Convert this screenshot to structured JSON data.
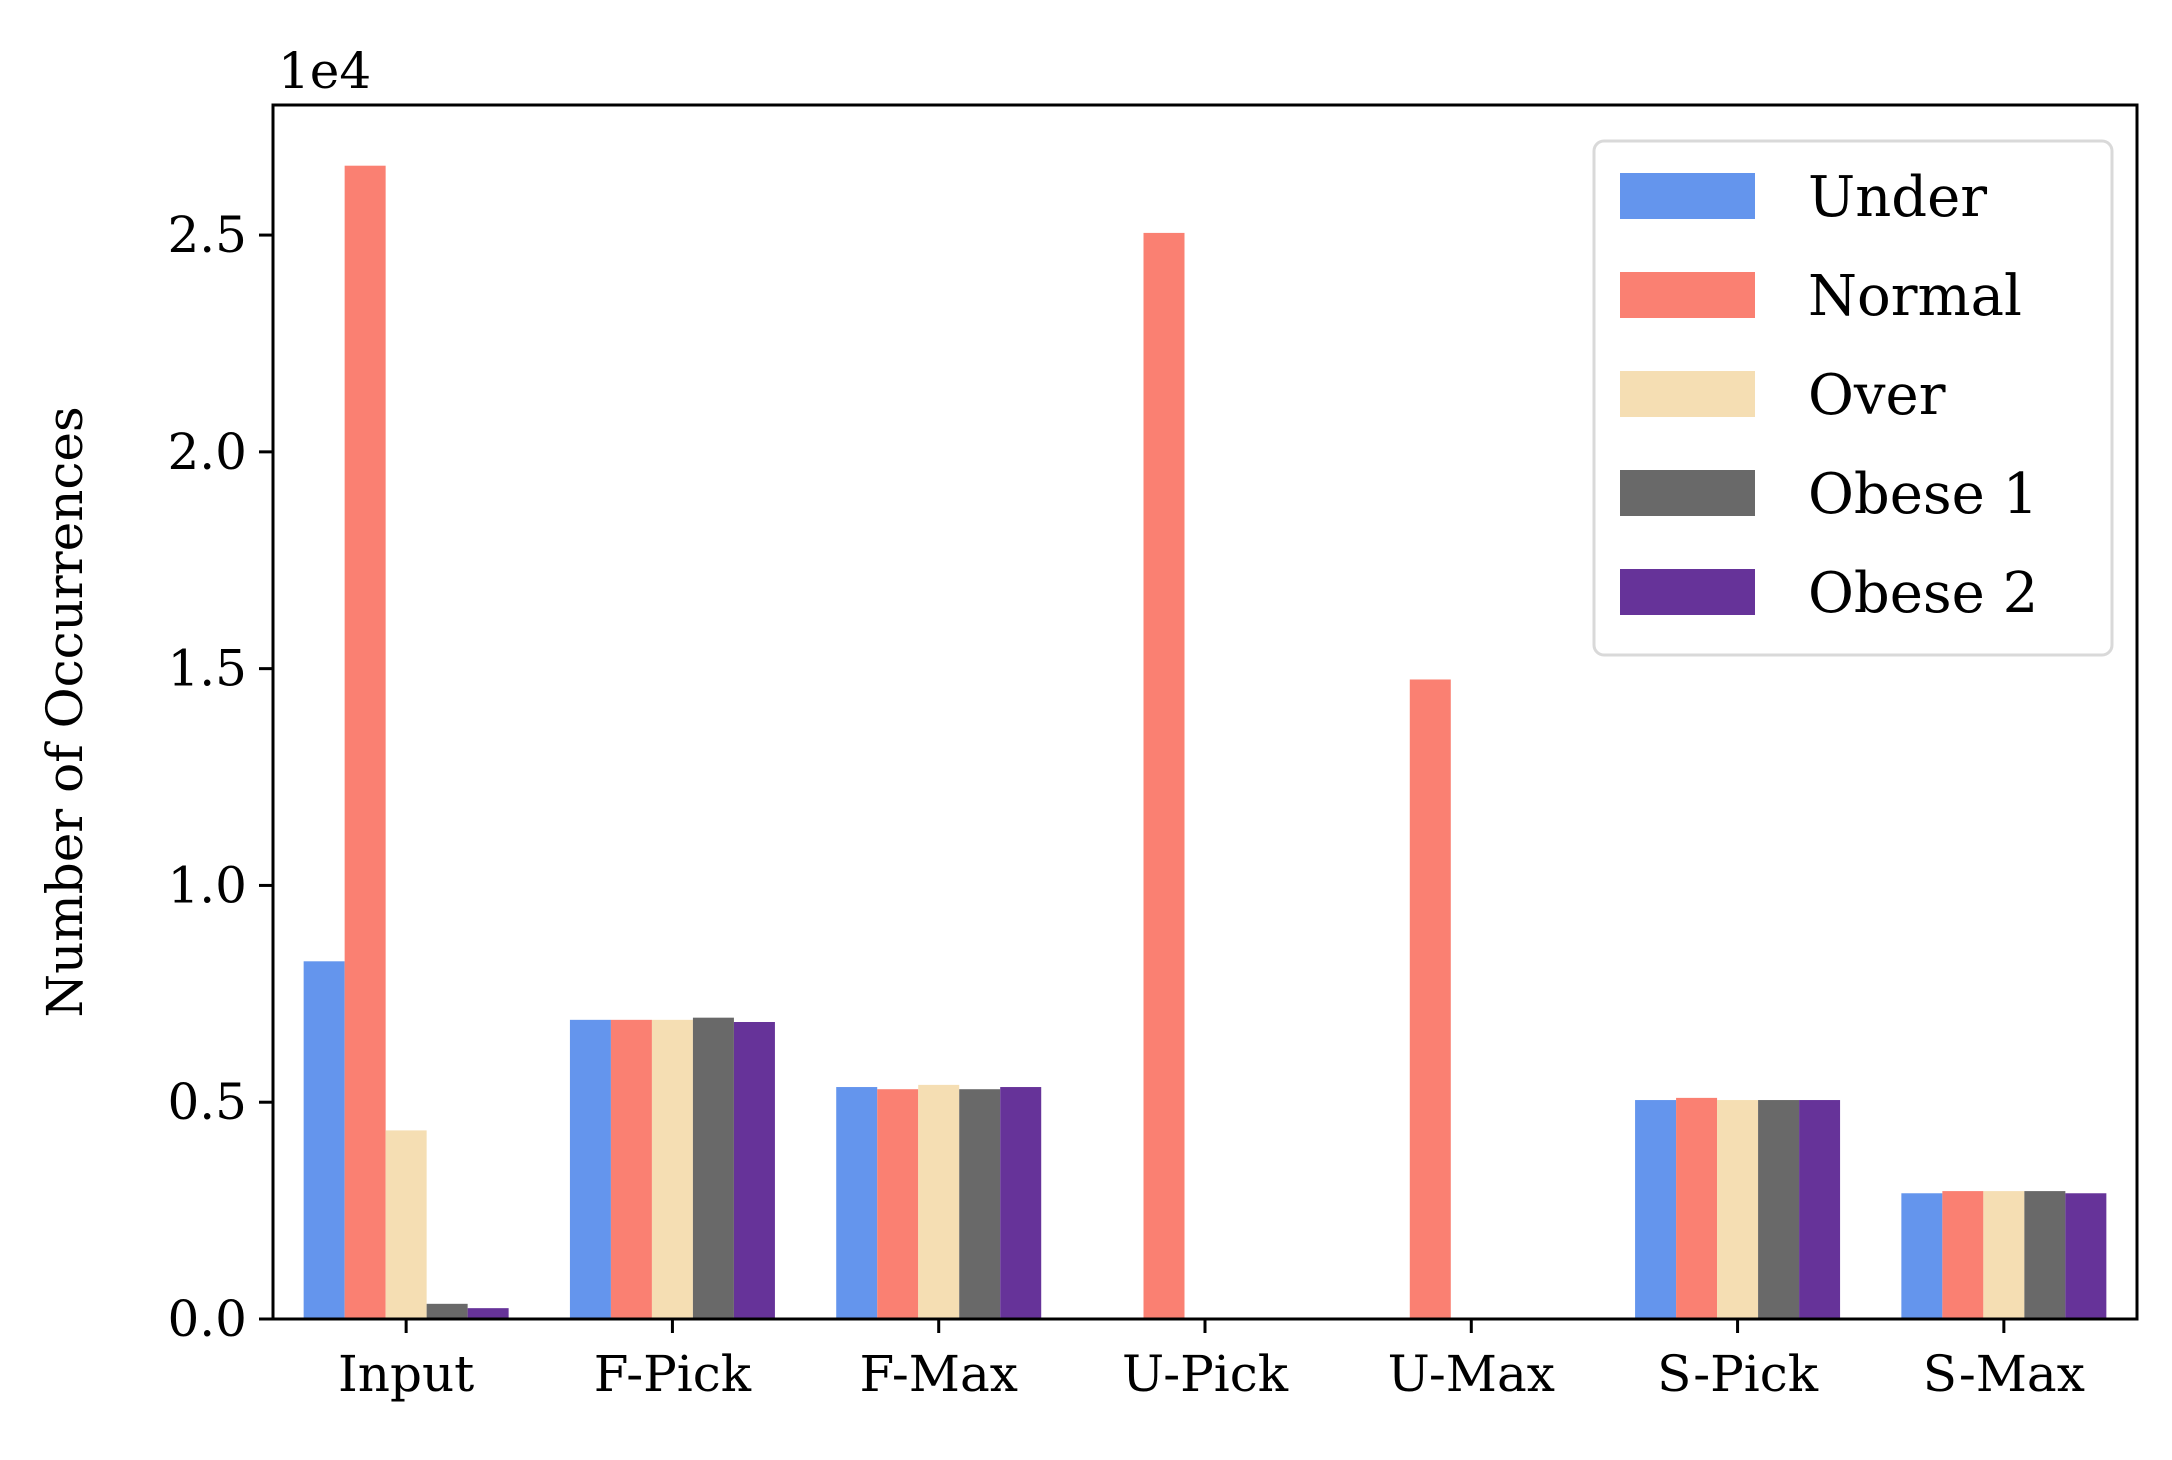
{
  "chart_data": {
    "type": "bar",
    "ylabel": "Number of Occurrences",
    "xlabel": "",
    "y_multiplier_label": "1e4",
    "ylim": [
      0,
      2.8
    ],
    "y_ticks": [
      0.0,
      0.5,
      1.0,
      1.5,
      2.0,
      2.5
    ],
    "y_tick_labels": [
      "0.0",
      "0.5",
      "1.0",
      "1.5",
      "2.0",
      "2.5"
    ],
    "categories": [
      "Input",
      "F-Pick",
      "F-Max",
      "U-Pick",
      "U-Max",
      "S-Pick",
      "S-Max"
    ],
    "series": [
      {
        "name": "Under",
        "color": "#6495ED",
        "values": [
          0.825,
          0.69,
          0.535,
          0.002,
          0.002,
          0.505,
          0.29
        ]
      },
      {
        "name": "Normal",
        "color": "#FA8072",
        "values": [
          2.66,
          0.69,
          0.53,
          2.505,
          1.475,
          0.51,
          0.295
        ]
      },
      {
        "name": "Over",
        "color": "#F5DEB3",
        "values": [
          0.435,
          0.69,
          0.54,
          0.0,
          0.0,
          0.505,
          0.295
        ]
      },
      {
        "name": "Obese 1",
        "color": "#696969",
        "values": [
          0.035,
          0.695,
          0.53,
          0.0,
          0.0,
          0.505,
          0.295
        ]
      },
      {
        "name": "Obese 2",
        "color": "#663399",
        "values": [
          0.025,
          0.685,
          0.535,
          0.0,
          0.0,
          0.505,
          0.29
        ]
      }
    ],
    "legend_position": "top-right",
    "grid": false
  }
}
